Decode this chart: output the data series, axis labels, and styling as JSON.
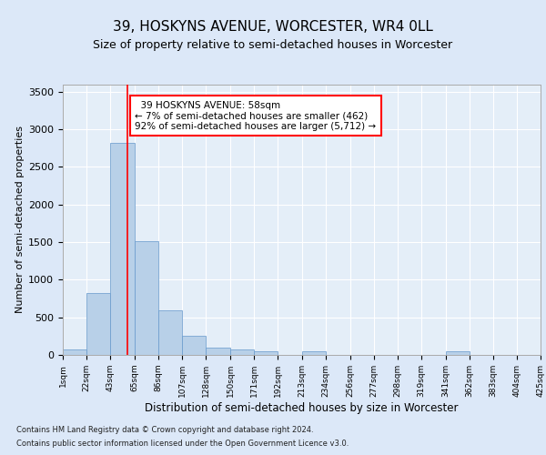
{
  "title": "39, HOSKYNS AVENUE, WORCESTER, WR4 0LL",
  "subtitle": "Size of property relative to semi-detached houses in Worcester",
  "xlabel": "Distribution of semi-detached houses by size in Worcester",
  "ylabel": "Number of semi-detached properties",
  "footnote1": "Contains HM Land Registry data © Crown copyright and database right 2024.",
  "footnote2": "Contains public sector information licensed under the Open Government Licence v3.0.",
  "annotation_line1": "  39 HOSKYNS AVENUE: 58sqm",
  "annotation_line2": "← 7% of semi-detached houses are smaller (462)",
  "annotation_line3": "92% of semi-detached houses are larger (5,712) →",
  "bar_color": "#b8d0e8",
  "bar_edge_color": "#6699cc",
  "property_line_x": 58,
  "bin_edges": [
    1,
    22,
    43,
    65,
    86,
    107,
    128,
    150,
    171,
    192,
    213,
    234,
    256,
    277,
    298,
    319,
    341,
    362,
    383,
    404,
    425
  ],
  "bin_labels": [
    "1sqm",
    "22sqm",
    "43sqm",
    "65sqm",
    "86sqm",
    "107sqm",
    "128sqm",
    "150sqm",
    "171sqm",
    "192sqm",
    "213sqm",
    "234sqm",
    "256sqm",
    "277sqm",
    "298sqm",
    "319sqm",
    "341sqm",
    "362sqm",
    "383sqm",
    "404sqm",
    "425sqm"
  ],
  "bar_heights": [
    75,
    820,
    2820,
    1510,
    595,
    250,
    100,
    70,
    50,
    5,
    45,
    0,
    0,
    0,
    0,
    0,
    45,
    0,
    0,
    0
  ],
  "ylim": [
    0,
    3600
  ],
  "yticks": [
    0,
    500,
    1000,
    1500,
    2000,
    2500,
    3000,
    3500
  ],
  "bg_color": "#dce8f8",
  "plot_bg_color": "#e4eef8",
  "grid_color": "#ffffff",
  "title_fontsize": 11,
  "subtitle_fontsize": 9,
  "ylabel_fontsize": 8,
  "xlabel_fontsize": 8.5,
  "annotation_fontsize": 7.5
}
